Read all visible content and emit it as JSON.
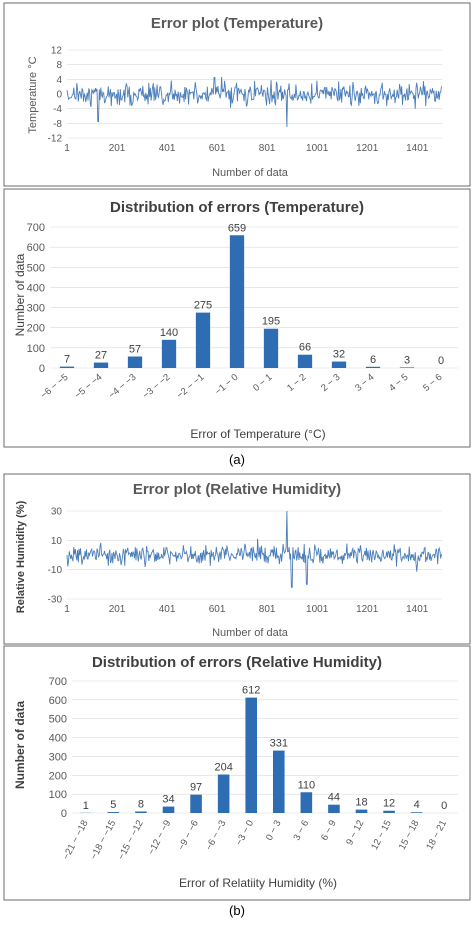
{
  "panel_a_label": "(a)",
  "panel_b_label": "(b)",
  "colors": {
    "series": "#4a7ebb",
    "bar": "#2e6db4",
    "grid": "#d9d9d9",
    "axis_text": "#595959",
    "title": "#595959"
  },
  "chart_data": [
    {
      "type": "line",
      "title": "Error plot (Temperature)",
      "xlabel": "Number of data",
      "ylabel": "Temperature °C",
      "x_ticks": [
        "1",
        "201",
        "401",
        "601",
        "801",
        "1001",
        "1201",
        "1401"
      ],
      "y_ticks": [
        12,
        8,
        4,
        0,
        -4,
        -8,
        -12
      ],
      "ylim": [
        -12,
        12
      ],
      "xlim": [
        1,
        1500
      ],
      "n_points": 1500,
      "value_spread": 3,
      "spikes": [
        [
          880,
          -11.5
        ],
        [
          590,
          4.5
        ],
        [
          125,
          -7.5
        ],
        [
          880,
          -9
        ]
      ]
    },
    {
      "type": "bar",
      "title": "Distribution of errors (Temperature)",
      "xlabel": "Error of Temperature (°C)",
      "ylabel": "Number of data",
      "categories": [
        "−6 − −5",
        "−5 − −4",
        "−4 − −3",
        "−3 − −2",
        "−2 − −1",
        "−1 − 0",
        "0 − 1",
        "1 − 2",
        "2 − 3",
        "3 − 4",
        "4 − 5",
        "5 − 6"
      ],
      "values": [
        7,
        27,
        57,
        140,
        275,
        659,
        195,
        66,
        32,
        6,
        3,
        0
      ],
      "y_ticks": [
        0,
        100,
        200,
        300,
        400,
        500,
        600,
        700
      ],
      "ylim": [
        0,
        700
      ]
    },
    {
      "type": "line",
      "title": "Error plot (Relative Humidity)",
      "xlabel": "Number of data",
      "ylabel": "Relative Humidity (%)",
      "x_ticks": [
        "1",
        "201",
        "401",
        "601",
        "801",
        "1001",
        "1201",
        "1401"
      ],
      "y_ticks": [
        30,
        10,
        -10,
        -30
      ],
      "ylim": [
        -30,
        30
      ],
      "xlim": [
        1,
        1500
      ],
      "n_points": 1500,
      "value_spread": 7,
      "spikes": [
        [
          880,
          30
        ],
        [
          900,
          -22
        ],
        [
          960,
          -20
        ]
      ]
    },
    {
      "type": "bar",
      "title": "Distribution of errors (Relative Humidity)",
      "xlabel": "Error of Relatiity Humidity  (%)",
      "ylabel": "Number of data",
      "categories": [
        "−21 − −18",
        "−18 − −15",
        "−15 − −12",
        "−12 − −9",
        "−9 − −6",
        "−6 − −3",
        "−3 − 0",
        "0 − 3",
        "3 − 6",
        "6 − 9",
        "9 − 12",
        "12 − 15",
        "15 − 18",
        "18 − 21"
      ],
      "values": [
        1,
        5,
        8,
        34,
        97,
        204,
        612,
        331,
        110,
        44,
        18,
        12,
        4,
        0
      ],
      "y_ticks": [
        0,
        100,
        200,
        300,
        400,
        500,
        600,
        700
      ],
      "ylim": [
        0,
        700
      ]
    }
  ]
}
